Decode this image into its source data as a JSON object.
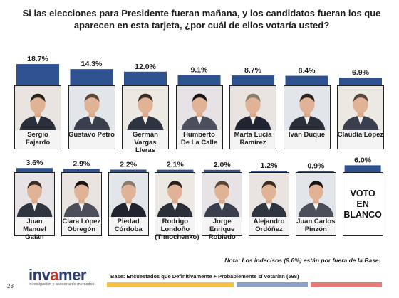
{
  "title": "Si las elecciones para Presidente fueran mañana, y los candidatos fueran los que aparecen en esta tarjeta, ¿por cuál de ellos votaría usted?",
  "colors": {
    "bar": "#2e5190",
    "bar_top": "#3b64a6",
    "stripe_yellow": "#f4c143",
    "stripe_blue": "#8da2c0",
    "stripe_red": "#e87b78",
    "brand": "#2c3e6f"
  },
  "chart_data": {
    "type": "bar",
    "ylim": [
      0,
      20
    ],
    "rows": [
      {
        "categories": [
          "Sergio Fajardo",
          "Gustavo Petro",
          "Germán Vargas Lleras",
          "Humberto De La Calle",
          "Marta Lucía Ramírez",
          "Iván Duque",
          "Claudia López"
        ],
        "values": [
          18.7,
          14.3,
          12.0,
          9.1,
          8.7,
          8.4,
          6.9
        ],
        "value_labels": [
          "18.7%",
          "14.3%",
          "12.0%",
          "9.1%",
          "8.7%",
          "8.4%",
          "6.9%"
        ],
        "name_lines": [
          [
            "Sergio Fajardo"
          ],
          [
            "Gustavo Petro"
          ],
          [
            "Germán Vargas",
            "Lleras"
          ],
          [
            "Humberto",
            "De La Calle"
          ],
          [
            "Marta Lucía",
            "Ramírez"
          ],
          [
            "Iván Duque"
          ],
          [
            "Claudia López"
          ]
        ]
      },
      {
        "categories": [
          "Juan Manuel Galán",
          "Clara López Obregón",
          "Piedad Córdoba",
          "Rodrigo Londoño (Timochenko)",
          "Jorge Enrique Robledo",
          "Alejandro Ordóñez",
          "Juan Carlos Pinzón",
          "VOTO EN BLANCO"
        ],
        "values": [
          3.6,
          2.9,
          2.2,
          2.1,
          2.0,
          1.2,
          0.9,
          6.0
        ],
        "value_labels": [
          "3.6%",
          "2.9%",
          "2.2%",
          "2.1%",
          "2.0%",
          "1.2%",
          "0.9%",
          "6.0%"
        ],
        "name_lines": [
          [
            "Juan Manuel",
            "Galán"
          ],
          [
            "Clara López",
            "Obregón"
          ],
          [
            "Piedad",
            "Córdoba"
          ],
          [
            "Rodrigo",
            "Londoño",
            "(Timochenko)"
          ],
          [
            "Jorge Enrique",
            "Robledo"
          ],
          [
            "Alejandro",
            "Ordóñez"
          ],
          [
            "Juan Carlos",
            "Pinzón"
          ],
          [
            "VOTO EN",
            "BLANCO"
          ]
        ]
      }
    ]
  },
  "note": "Nota: Los indecisos (9.6%) están por fuera de la Base.",
  "base": "Base: Encuestados que Definitivamente + Probablemente sí votarían (598)",
  "brand": {
    "name_main": "invamer",
    "tagline": "Investigación y asesoría de mercados"
  },
  "page_number": "23"
}
